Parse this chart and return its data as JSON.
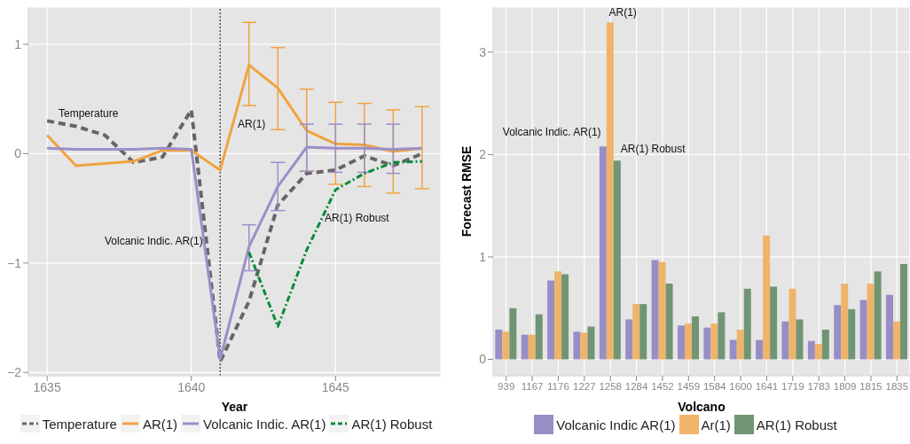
{
  "chart_data": [
    {
      "type": "line",
      "xlabel": "Year",
      "x": [
        1635,
        1636,
        1637,
        1638,
        1639,
        1640,
        1641,
        1642,
        1643,
        1644,
        1645,
        1646,
        1647,
        1648
      ],
      "xlim": [
        1634.35,
        1648.65
      ],
      "xticks": [
        1635,
        1640,
        1645
      ],
      "ylim": [
        -2.03,
        1.34
      ],
      "yticks": [
        {
          "value": -2,
          "label": "−2"
        },
        {
          "value": -1,
          "label": "−1"
        },
        0,
        1
      ],
      "grid": true,
      "legend": "bottom",
      "series": [
        {
          "name": "Temperature",
          "color": "#666666",
          "line_style": "dashed",
          "values": [
            0.3,
            0.25,
            0.17,
            -0.08,
            -0.03,
            0.4,
            -1.9,
            -1.35,
            -0.47,
            -0.18,
            -0.15,
            -0.02,
            -0.11,
            0.0
          ]
        },
        {
          "name": "AR(1)",
          "color": "#f0a33f",
          "line_style": "solid",
          "values": [
            0.17,
            -0.11,
            -0.09,
            -0.07,
            0.03,
            0.03,
            -0.15,
            0.81,
            0.6,
            0.21,
            0.09,
            0.08,
            0.02,
            0.05
          ],
          "errors": [
            null,
            null,
            null,
            null,
            null,
            null,
            null,
            [
              0.44,
              1.2
            ],
            [
              0.22,
              0.97
            ],
            [
              -0.16,
              0.59
            ],
            [
              -0.28,
              0.47
            ],
            [
              -0.3,
              0.46
            ],
            [
              -0.36,
              0.4
            ],
            [
              -0.32,
              0.43
            ]
          ]
        },
        {
          "name": "Volcanic Indic. AR(1)",
          "color": "#9b8fc9",
          "line_style": "solid",
          "values": [
            0.05,
            0.04,
            0.04,
            0.04,
            0.05,
            0.04,
            -1.88,
            -0.85,
            -0.3,
            0.06,
            0.05,
            0.05,
            0.04,
            0.05
          ],
          "errors": [
            null,
            null,
            null,
            null,
            null,
            null,
            null,
            [
              -1.07,
              -0.65
            ],
            [
              -0.52,
              -0.08
            ],
            [
              -0.16,
              0.27
            ],
            [
              -0.17,
              0.27
            ],
            [
              -0.17,
              0.27
            ],
            [
              -0.18,
              0.27
            ],
            null
          ]
        },
        {
          "name": "AR(1) Robust",
          "color": "#0b8a3a",
          "line_style": "dotted",
          "values": [
            null,
            null,
            null,
            null,
            null,
            null,
            null,
            -0.9,
            -1.58,
            -0.88,
            -0.33,
            -0.18,
            -0.08,
            -0.07
          ]
        }
      ],
      "ref_lines": [
        {
          "axis": "x",
          "value": 1641,
          "line_style": "dotted",
          "color": "#555555"
        }
      ],
      "annotations": [
        "Temperature",
        "AR(1)",
        "Volcanic Indic. AR(1)",
        "AR(1) Robust"
      ]
    },
    {
      "type": "bar",
      "xlabel": "Volcano",
      "ylabel": "Forecast RMSE",
      "categories": [
        "939",
        "1167",
        "1176",
        "1227",
        "1258",
        "1284",
        "1452",
        "1459",
        "1584",
        "1600",
        "1641",
        "1719",
        "1783",
        "1809",
        "1815",
        "1835"
      ],
      "ylim": [
        -0.16,
        3.44
      ],
      "yticks": [
        0,
        1,
        2,
        3
      ],
      "grid": true,
      "legend": "bottom",
      "series": [
        {
          "name": "Volcanic Indic AR(1)",
          "color": "#988dc4",
          "values": [
            0.29,
            0.24,
            0.77,
            0.27,
            2.08,
            0.39,
            0.97,
            0.33,
            0.31,
            0.19,
            0.19,
            0.37,
            0.18,
            0.53,
            0.58,
            0.63
          ]
        },
        {
          "name": "Ar(1)",
          "color": "#efb46a",
          "values": [
            0.27,
            0.24,
            0.86,
            0.26,
            3.29,
            0.54,
            0.95,
            0.35,
            0.35,
            0.29,
            1.21,
            0.69,
            0.15,
            0.74,
            0.74,
            0.37
          ]
        },
        {
          "name": "AR(1) Robust",
          "color": "#719574",
          "values": [
            0.5,
            0.44,
            0.83,
            0.32,
            1.94,
            0.54,
            0.74,
            0.42,
            0.46,
            0.69,
            0.71,
            0.39,
            0.29,
            0.49,
            0.86,
            0.93
          ]
        }
      ],
      "annotations": [
        {
          "text": "AR(1)",
          "x": "1258",
          "y": 3.29
        },
        {
          "text": "Volcanic Indic. AR(1)",
          "x": "1258",
          "y": 2.08
        },
        {
          "text": "AR(1) Robust",
          "x": "1258",
          "y": 1.94
        }
      ]
    }
  ]
}
